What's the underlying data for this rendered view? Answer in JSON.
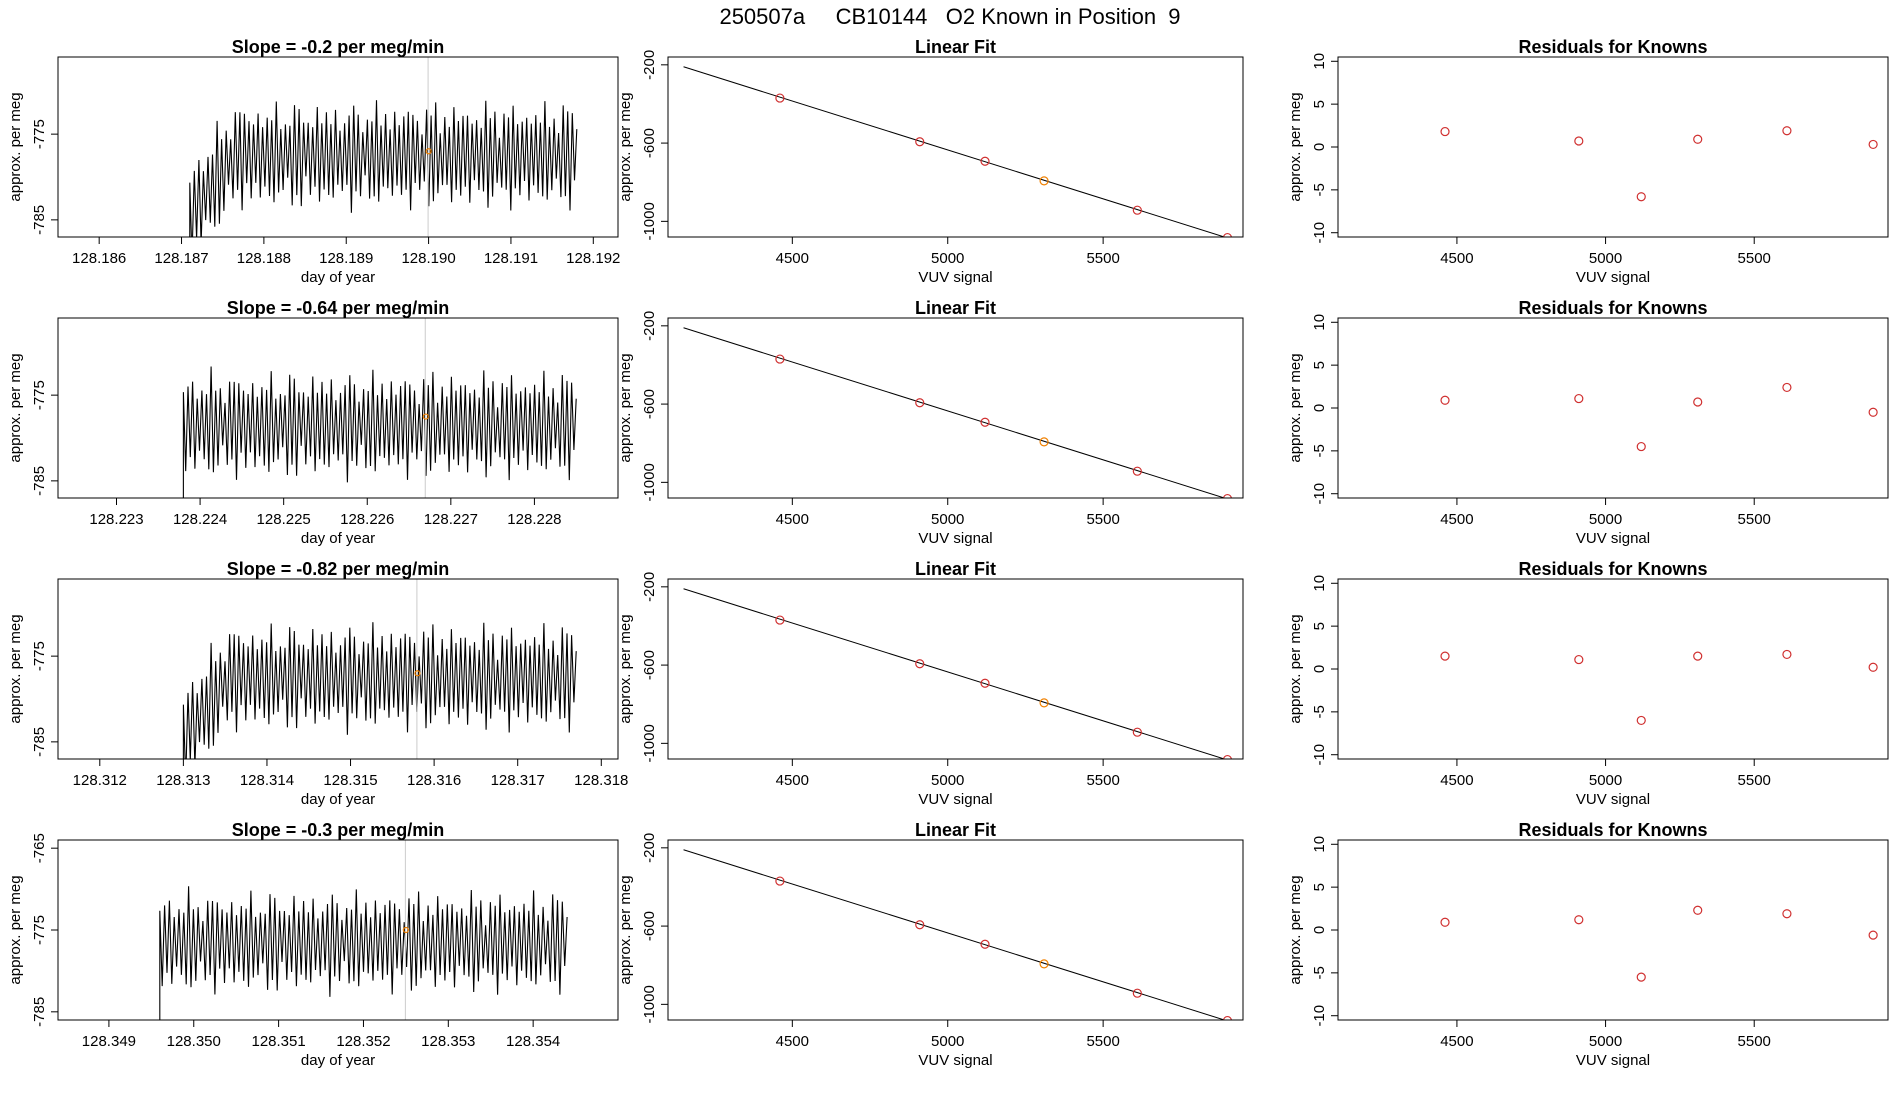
{
  "title": "250507a     CB10144   O2 Known in Position  9",
  "colors": {
    "trace": "#000000",
    "point": "#d03030",
    "highlight": "#f08000",
    "line": "#000000",
    "frame": "#000000"
  },
  "chart_data": [
    {
      "type": "line",
      "panel": "series",
      "title": "Slope =  -0.2  per meg/min",
      "xlabel": "day of year",
      "ylabel": "approx. per meg",
      "xlim": [
        128.1855,
        128.1923
      ],
      "ylim": [
        -787,
        -766
      ],
      "xticks": [
        "128.186",
        "128.187",
        "128.188",
        "128.189",
        "128.190",
        "128.191",
        "128.192"
      ],
      "yticks": [
        "-775",
        "-785"
      ],
      "trace": {
        "start": 128.1871,
        "end": 128.1918,
        "center": -777.5,
        "amp": 5.5,
        "ramp": true
      },
      "marker": {
        "x": 128.19,
        "y": -777
      }
    },
    {
      "type": "scatter",
      "panel": "fit",
      "title": "Linear Fit",
      "xlabel": "VUV signal",
      "ylabel": "approx. per meg",
      "xlim": [
        4100,
        5950
      ],
      "ylim": [
        -1080,
        -160
      ],
      "xticks": [
        "4500",
        "5000",
        "5500"
      ],
      "yticks": [
        "-200",
        "-600",
        "-1000"
      ],
      "x": [
        4460,
        4910,
        5120,
        5310,
        5610,
        5900
      ],
      "y": [
        -370,
        -593,
        -693,
        -793,
        -943,
        -1083
      ],
      "highlight_index": 3,
      "fit": {
        "x": [
          4150,
          5900
        ],
        "y": [
          -210,
          -1085
        ]
      }
    },
    {
      "type": "scatter",
      "panel": "resid",
      "title": "Residuals for Knowns",
      "xlabel": "VUV signal",
      "ylabel": "approx. per meg",
      "xlim": [
        4100,
        5950
      ],
      "ylim": [
        -10.5,
        10.5
      ],
      "xticks": [
        "4500",
        "5000",
        "5500"
      ],
      "yticks": [
        "10",
        "5",
        "0",
        "-5",
        "-10"
      ],
      "x": [
        4460,
        4910,
        5120,
        5310,
        5610,
        5900
      ],
      "y": [
        1.8,
        0.7,
        -5.8,
        0.9,
        1.9,
        0.3
      ]
    },
    {
      "type": "line",
      "panel": "series",
      "title": "Slope =  -0.64  per meg/min",
      "xlabel": "day of year",
      "ylabel": "approx. per meg",
      "xlim": [
        128.2223,
        128.229
      ],
      "ylim": [
        -787,
        -766
      ],
      "xticks": [
        "128.223",
        "128.224",
        "128.225",
        "128.226",
        "128.227",
        "128.228"
      ],
      "yticks": [
        "-775",
        "-785"
      ],
      "trace": {
        "start": 128.2238,
        "end": 128.2285,
        "center": -778.5,
        "amp": 5.5,
        "ramp": false
      },
      "marker": {
        "x": 128.2267,
        "y": -777.5
      }
    },
    {
      "type": "scatter",
      "panel": "fit",
      "title": "Linear Fit",
      "xlabel": "VUV signal",
      "ylabel": "approx. per meg",
      "xlim": [
        4100,
        5950
      ],
      "ylim": [
        -1080,
        -160
      ],
      "xticks": [
        "4500",
        "5000",
        "5500"
      ],
      "yticks": [
        "-200",
        "-600",
        "-1000"
      ],
      "x": [
        4460,
        4910,
        5120,
        5310,
        5610,
        5900
      ],
      "y": [
        -370,
        -593,
        -693,
        -793,
        -943,
        -1083
      ],
      "highlight_index": 3,
      "fit": {
        "x": [
          4150,
          5900
        ],
        "y": [
          -210,
          -1085
        ]
      }
    },
    {
      "type": "scatter",
      "panel": "resid",
      "title": "Residuals for Knowns",
      "xlabel": "VUV signal",
      "ylabel": "approx. per meg",
      "xlim": [
        4100,
        5950
      ],
      "ylim": [
        -10.5,
        10.5
      ],
      "xticks": [
        "4500",
        "5000",
        "5500"
      ],
      "yticks": [
        "10",
        "5",
        "0",
        "-5",
        "-10"
      ],
      "x": [
        4460,
        4910,
        5120,
        5310,
        5610,
        5900
      ],
      "y": [
        0.9,
        1.1,
        -4.5,
        0.7,
        2.4,
        -0.5
      ]
    },
    {
      "type": "line",
      "panel": "series",
      "title": "Slope =  -0.82  per meg/min",
      "xlabel": "day of year",
      "ylabel": "approx. per meg",
      "xlim": [
        128.3115,
        128.3182
      ],
      "ylim": [
        -787,
        -766
      ],
      "xticks": [
        "128.312",
        "128.313",
        "128.314",
        "128.315",
        "128.316",
        "128.317",
        "128.318"
      ],
      "yticks": [
        "-775",
        "-785"
      ],
      "trace": {
        "start": 128.313,
        "end": 128.3177,
        "center": -777.5,
        "amp": 5.5,
        "ramp": true
      },
      "marker": {
        "x": 128.3158,
        "y": -777
      }
    },
    {
      "type": "scatter",
      "panel": "fit",
      "title": "Linear Fit",
      "xlabel": "VUV signal",
      "ylabel": "approx. per meg",
      "xlim": [
        4100,
        5950
      ],
      "ylim": [
        -1080,
        -160
      ],
      "xticks": [
        "4500",
        "5000",
        "5500"
      ],
      "yticks": [
        "-200",
        "-600",
        "-1000"
      ],
      "x": [
        4460,
        4910,
        5120,
        5310,
        5610,
        5900
      ],
      "y": [
        -370,
        -593,
        -693,
        -793,
        -943,
        -1083
      ],
      "highlight_index": 3,
      "fit": {
        "x": [
          4150,
          5900
        ],
        "y": [
          -210,
          -1085
        ]
      }
    },
    {
      "type": "scatter",
      "panel": "resid",
      "title": "Residuals for Knowns",
      "xlabel": "VUV signal",
      "ylabel": "approx. per meg",
      "xlim": [
        4100,
        5950
      ],
      "ylim": [
        -10.5,
        10.5
      ],
      "xticks": [
        "4500",
        "5000",
        "5500"
      ],
      "yticks": [
        "10",
        "5",
        "0",
        "-5",
        "-10"
      ],
      "x": [
        4460,
        4910,
        5120,
        5310,
        5610,
        5900
      ],
      "y": [
        1.5,
        1.1,
        -6.0,
        1.5,
        1.7,
        0.2
      ]
    },
    {
      "type": "line",
      "panel": "series",
      "title": "Slope =  -0.3  per meg/min",
      "xlabel": "day of year",
      "ylabel": "approx. per meg",
      "xlim": [
        128.3484,
        128.355
      ],
      "ylim": [
        -786,
        -764
      ],
      "xticks": [
        "128.349",
        "128.350",
        "128.351",
        "128.352",
        "128.353",
        "128.354"
      ],
      "yticks": [
        "-765",
        "-775",
        "-785"
      ],
      "trace": {
        "start": 128.3496,
        "end": 128.3544,
        "center": -776.5,
        "amp": 5.5,
        "ramp": false
      },
      "marker": {
        "x": 128.3525,
        "y": -775
      }
    },
    {
      "type": "scatter",
      "panel": "fit",
      "title": "Linear Fit",
      "xlabel": "VUV signal",
      "ylabel": "approx. per meg",
      "xlim": [
        4100,
        5950
      ],
      "ylim": [
        -1080,
        -160
      ],
      "xticks": [
        "4500",
        "5000",
        "5500"
      ],
      "yticks": [
        "-200",
        "-600",
        "-1000"
      ],
      "x": [
        4460,
        4910,
        5120,
        5310,
        5610,
        5900
      ],
      "y": [
        -370,
        -593,
        -693,
        -793,
        -943,
        -1083
      ],
      "highlight_index": 3,
      "fit": {
        "x": [
          4150,
          5900
        ],
        "y": [
          -210,
          -1085
        ]
      }
    },
    {
      "type": "scatter",
      "panel": "resid",
      "title": "Residuals for Knowns",
      "xlabel": "VUV signal",
      "ylabel": "approx. per meg",
      "xlim": [
        4100,
        5950
      ],
      "ylim": [
        -10.5,
        10.5
      ],
      "xticks": [
        "4500",
        "5000",
        "5500"
      ],
      "yticks": [
        "10",
        "5",
        "0",
        "-5",
        "-10"
      ],
      "x": [
        4460,
        4910,
        5120,
        5310,
        5610,
        5900
      ],
      "y": [
        0.9,
        1.2,
        -5.5,
        2.3,
        1.9,
        -0.6
      ]
    }
  ]
}
